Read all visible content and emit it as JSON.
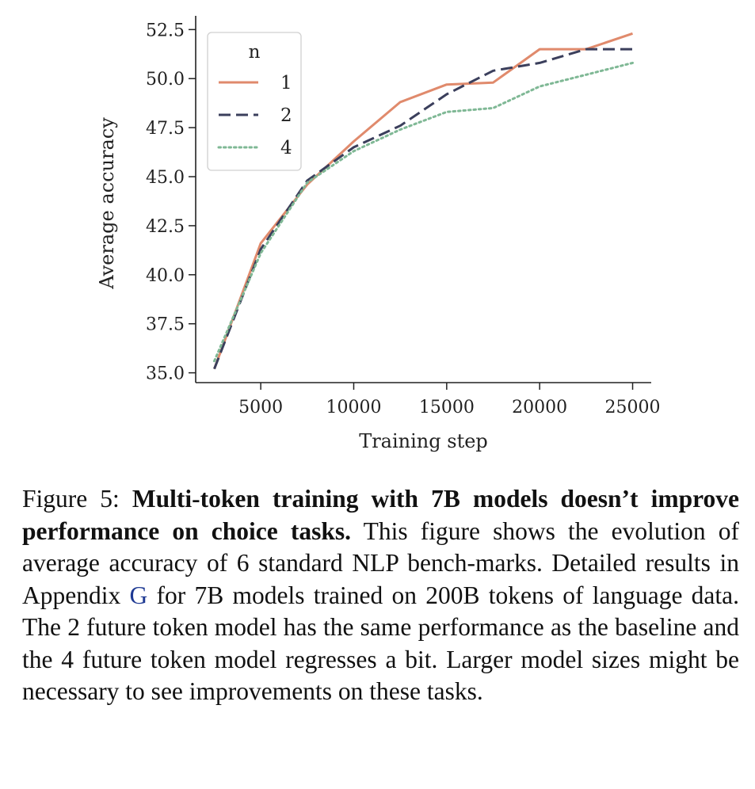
{
  "chart_data": {
    "type": "line",
    "xlabel": "Training step",
    "ylabel": "Average accuracy",
    "xlim": [
      1500,
      26000
    ],
    "ylim": [
      34.5,
      53.2
    ],
    "xticks": [
      5000,
      10000,
      15000,
      20000,
      25000
    ],
    "yticks": [
      35.0,
      37.5,
      40.0,
      42.5,
      45.0,
      47.5,
      50.0,
      52.5
    ],
    "grid": false,
    "legend": {
      "title": "n",
      "placement": "top-left"
    },
    "x": [
      2500,
      5000,
      7500,
      10000,
      12500,
      15000,
      17500,
      20000,
      22500,
      25000
    ],
    "series": [
      {
        "name": "1",
        "color": "#e08a6c",
        "style": "solid",
        "values": [
          35.2,
          41.6,
          44.6,
          46.8,
          48.8,
          49.7,
          49.8,
          51.5,
          51.5,
          52.3
        ]
      },
      {
        "name": "2",
        "color": "#3b3f5c",
        "style": "dashed",
        "values": [
          35.2,
          41.3,
          44.8,
          46.5,
          47.6,
          49.2,
          50.4,
          50.8,
          51.5,
          51.5
        ]
      },
      {
        "name": "4",
        "color": "#7fb895",
        "style": "dotted",
        "values": [
          35.6,
          41.1,
          44.7,
          46.3,
          47.4,
          48.3,
          48.5,
          49.6,
          50.2,
          50.8
        ]
      }
    ]
  },
  "caption": {
    "figure_label": "Figure 5:",
    "bold_title": "Multi-token training with 7B models doesn’t improve performance on choice tasks.",
    "text_before_ref": "This figure shows the evolution of average accuracy of 6 standard NLP bench-marks.  Detailed results in Appendix",
    "ref": "G",
    "text_after_ref": "for 7B models trained on 200B tokens of language data.  The 2 future token model has the same performance as the baseline and the 4 future token model regresses a bit. Larger model sizes might be necessary to see improvements on these tasks."
  }
}
